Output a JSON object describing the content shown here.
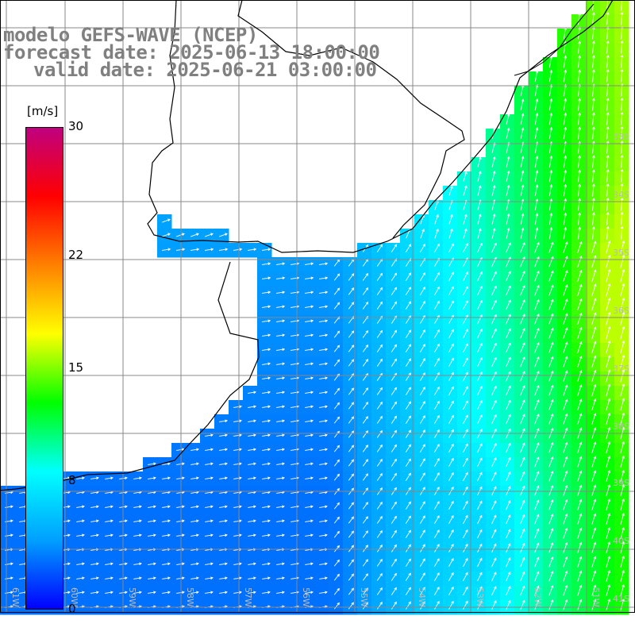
{
  "title": {
    "line1": "modelo GEFS-WAVE (NCEP)",
    "line2": "forecast date: 2025-06-13 18:00:00",
    "line3": "valid date: 2025-06-21 03:00:00"
  },
  "colorbar": {
    "unit": "[m/s]",
    "min": 0,
    "max": 30,
    "ticks": [
      "30",
      "22",
      "15",
      "8",
      "0"
    ],
    "tick_values": [
      30,
      22,
      15,
      8,
      0
    ],
    "colors": [
      "#0000ff",
      "#00a0ff",
      "#00ffff",
      "#00ff00",
      "#ffff00",
      "#ff8000",
      "#ff0000",
      "#c00080"
    ]
  },
  "graticule": {
    "lat_labels": [
      "33S",
      "34S",
      "35S",
      "36S",
      "37S",
      "38S",
      "39S",
      "40S",
      "41S"
    ],
    "lon_labels": [
      "61W",
      "60W",
      "59W",
      "58W",
      "57W",
      "56W",
      "55W",
      "54W",
      "53W",
      "52W",
      "51W"
    ]
  },
  "colors": {
    "land": "#ffffff",
    "coast": "#000000",
    "grid": "#888888",
    "arrow": "#ffffff",
    "title": "#808080"
  }
}
